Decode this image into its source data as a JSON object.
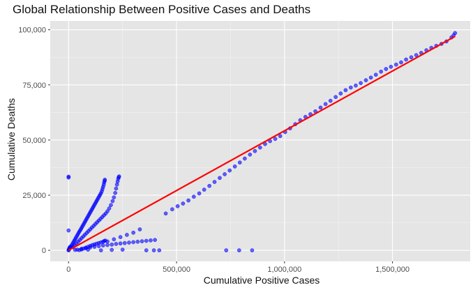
{
  "chart_data": {
    "type": "scatter",
    "title": "Global Relationship Between Positive Cases and Deaths",
    "xlabel": "Cumulative Positive Cases",
    "ylabel": "Cumulative Deaths",
    "xlim": [
      -85000,
      1860000
    ],
    "ylim": [
      -5000,
      104000
    ],
    "xticks": [
      0,
      500000,
      1000000,
      1500000
    ],
    "xtick_labels": [
      "0",
      "500,000",
      "1,000,000",
      "1,500,000"
    ],
    "yticks": [
      0,
      25000,
      50000,
      75000,
      100000
    ],
    "ytick_labels": [
      "0",
      "25,000",
      "50,000",
      "75,000",
      "100,000"
    ],
    "grid": true,
    "point_color": "#0000ff",
    "point_opacity": 0.6,
    "panel_background": "#e5e5e5",
    "series": [
      {
        "values": [
          [
            0,
            33000
          ],
          [
            0,
            33400
          ],
          [
            0,
            9000
          ],
          [
            0,
            0
          ],
          [
            1000,
            200
          ],
          [
            2000,
            500
          ],
          [
            3000,
            800
          ],
          [
            5000,
            1200
          ],
          [
            7000,
            1600
          ],
          [
            10000,
            1500
          ],
          [
            14000,
            2200
          ],
          [
            18000,
            2900
          ],
          [
            22000,
            3600
          ],
          [
            26000,
            4300
          ],
          [
            30000,
            5000
          ],
          [
            34000,
            5700
          ],
          [
            38000,
            6400
          ],
          [
            42000,
            7100
          ],
          [
            46000,
            7800
          ],
          [
            50000,
            8500
          ],
          [
            54000,
            9100
          ],
          [
            58000,
            9800
          ],
          [
            62000,
            10500
          ],
          [
            66000,
            11200
          ],
          [
            70000,
            11900
          ],
          [
            74000,
            12600
          ],
          [
            78000,
            13300
          ],
          [
            82000,
            14000
          ],
          [
            86000,
            14700
          ],
          [
            90000,
            15400
          ],
          [
            94000,
            16100
          ],
          [
            98000,
            16800
          ],
          [
            102000,
            17500
          ],
          [
            106000,
            18200
          ],
          [
            110000,
            18900
          ],
          [
            114000,
            19600
          ],
          [
            118000,
            20300
          ],
          [
            122000,
            21000
          ],
          [
            126000,
            21700
          ],
          [
            130000,
            22400
          ],
          [
            134000,
            23100
          ],
          [
            138000,
            23800
          ],
          [
            142000,
            24500
          ],
          [
            146000,
            25200
          ],
          [
            150000,
            25900
          ],
          [
            154000,
            26800
          ],
          [
            157000,
            27800
          ],
          [
            160000,
            28800
          ],
          [
            163000,
            29800
          ],
          [
            165000,
            30800
          ],
          [
            167000,
            31500
          ],
          [
            168000,
            32000
          ],
          [
            20000,
            1500
          ],
          [
            28000,
            2300
          ],
          [
            36000,
            3100
          ],
          [
            44000,
            3900
          ],
          [
            52000,
            4700
          ],
          [
            60000,
            5500
          ],
          [
            68000,
            6300
          ],
          [
            76000,
            7100
          ],
          [
            84000,
            7900
          ],
          [
            92000,
            8700
          ],
          [
            100000,
            9500
          ],
          [
            108000,
            10300
          ],
          [
            116000,
            11100
          ],
          [
            124000,
            11900
          ],
          [
            132000,
            12700
          ],
          [
            140000,
            13500
          ],
          [
            148000,
            14300
          ],
          [
            156000,
            15100
          ],
          [
            164000,
            15900
          ],
          [
            172000,
            16700
          ],
          [
            180000,
            17700
          ],
          [
            188000,
            19000
          ],
          [
            196000,
            20500
          ],
          [
            204000,
            22300
          ],
          [
            210000,
            24000
          ],
          [
            216000,
            26000
          ],
          [
            220000,
            28000
          ],
          [
            224000,
            29800
          ],
          [
            227000,
            31200
          ],
          [
            230000,
            32400
          ],
          [
            232000,
            33100
          ],
          [
            234000,
            33500
          ],
          [
            50000,
            100
          ],
          [
            60000,
            400
          ],
          [
            70000,
            800
          ],
          [
            80000,
            1200
          ],
          [
            90000,
            1600
          ],
          [
            100000,
            2000
          ],
          [
            110000,
            2400
          ],
          [
            120000,
            2700
          ],
          [
            130000,
            3000
          ],
          [
            140000,
            3300
          ],
          [
            150000,
            3600
          ],
          [
            160000,
            3900
          ],
          [
            165000,
            4200
          ],
          [
            170000,
            4400
          ],
          [
            40000,
            300
          ],
          [
            60000,
            700
          ],
          [
            80000,
            1000
          ],
          [
            100000,
            1300
          ],
          [
            120000,
            1600
          ],
          [
            140000,
            1900
          ],
          [
            160000,
            2200
          ],
          [
            180000,
            2400
          ],
          [
            200000,
            2600
          ],
          [
            220000,
            2900
          ],
          [
            240000,
            3100
          ],
          [
            260000,
            3300
          ],
          [
            280000,
            3500
          ],
          [
            300000,
            3700
          ],
          [
            320000,
            3900
          ],
          [
            340000,
            4100
          ],
          [
            360000,
            4300
          ],
          [
            380000,
            4500
          ],
          [
            400000,
            4700
          ],
          [
            180000,
            4000
          ],
          [
            210000,
            5000
          ],
          [
            240000,
            6000
          ],
          [
            270000,
            7000
          ],
          [
            300000,
            8000
          ],
          [
            330000,
            9500
          ],
          [
            30000,
            200
          ],
          [
            90000,
            300
          ],
          [
            150000,
            0
          ],
          [
            200000,
            200
          ],
          [
            250000,
            300
          ],
          [
            360000,
            0
          ],
          [
            395000,
            0
          ],
          [
            420000,
            0
          ],
          [
            730000,
            0
          ],
          [
            790000,
            0
          ],
          [
            850000,
            0
          ],
          [
            450000,
            16700
          ],
          [
            480000,
            18600
          ],
          [
            505000,
            20000
          ],
          [
            530000,
            21200
          ],
          [
            555000,
            22600
          ],
          [
            580000,
            24300
          ],
          [
            605000,
            25800
          ],
          [
            628000,
            27500
          ],
          [
            652000,
            29200
          ],
          [
            676000,
            31000
          ],
          [
            700000,
            32800
          ],
          [
            723000,
            34500
          ],
          [
            746000,
            36200
          ],
          [
            770000,
            38000
          ],
          [
            793000,
            39800
          ],
          [
            816000,
            41600
          ],
          [
            840000,
            43400
          ],
          [
            863000,
            45000
          ],
          [
            887000,
            46600
          ],
          [
            910000,
            48200
          ],
          [
            933000,
            49500
          ],
          [
            957000,
            50500
          ],
          [
            980000,
            51800
          ],
          [
            1003000,
            53600
          ],
          [
            1026000,
            55300
          ],
          [
            1050000,
            57200
          ],
          [
            1073000,
            59000
          ],
          [
            1097000,
            60500
          ],
          [
            1120000,
            61700
          ],
          [
            1143000,
            63000
          ],
          [
            1167000,
            64700
          ],
          [
            1190000,
            66300
          ],
          [
            1213000,
            67800
          ],
          [
            1237000,
            69500
          ],
          [
            1260000,
            71100
          ],
          [
            1283000,
            72600
          ],
          [
            1307000,
            73800
          ],
          [
            1330000,
            74700
          ],
          [
            1353000,
            75800
          ],
          [
            1377000,
            77100
          ],
          [
            1400000,
            78300
          ],
          [
            1423000,
            79600
          ],
          [
            1447000,
            81000
          ],
          [
            1470000,
            82200
          ],
          [
            1493000,
            83200
          ],
          [
            1517000,
            84200
          ],
          [
            1540000,
            85200
          ],
          [
            1563000,
            86500
          ],
          [
            1587000,
            87500
          ],
          [
            1610000,
            88500
          ],
          [
            1633000,
            89500
          ],
          [
            1657000,
            90700
          ],
          [
            1680000,
            91800
          ],
          [
            1703000,
            92700
          ],
          [
            1727000,
            93600
          ],
          [
            1750000,
            94700
          ],
          [
            1773000,
            96500
          ],
          [
            1783000,
            97500
          ],
          [
            1790000,
            98500
          ]
        ]
      }
    ],
    "fit_line": {
      "x": [
        0,
        1790000
      ],
      "y": [
        0,
        97000
      ],
      "color": "#ff0000"
    }
  }
}
